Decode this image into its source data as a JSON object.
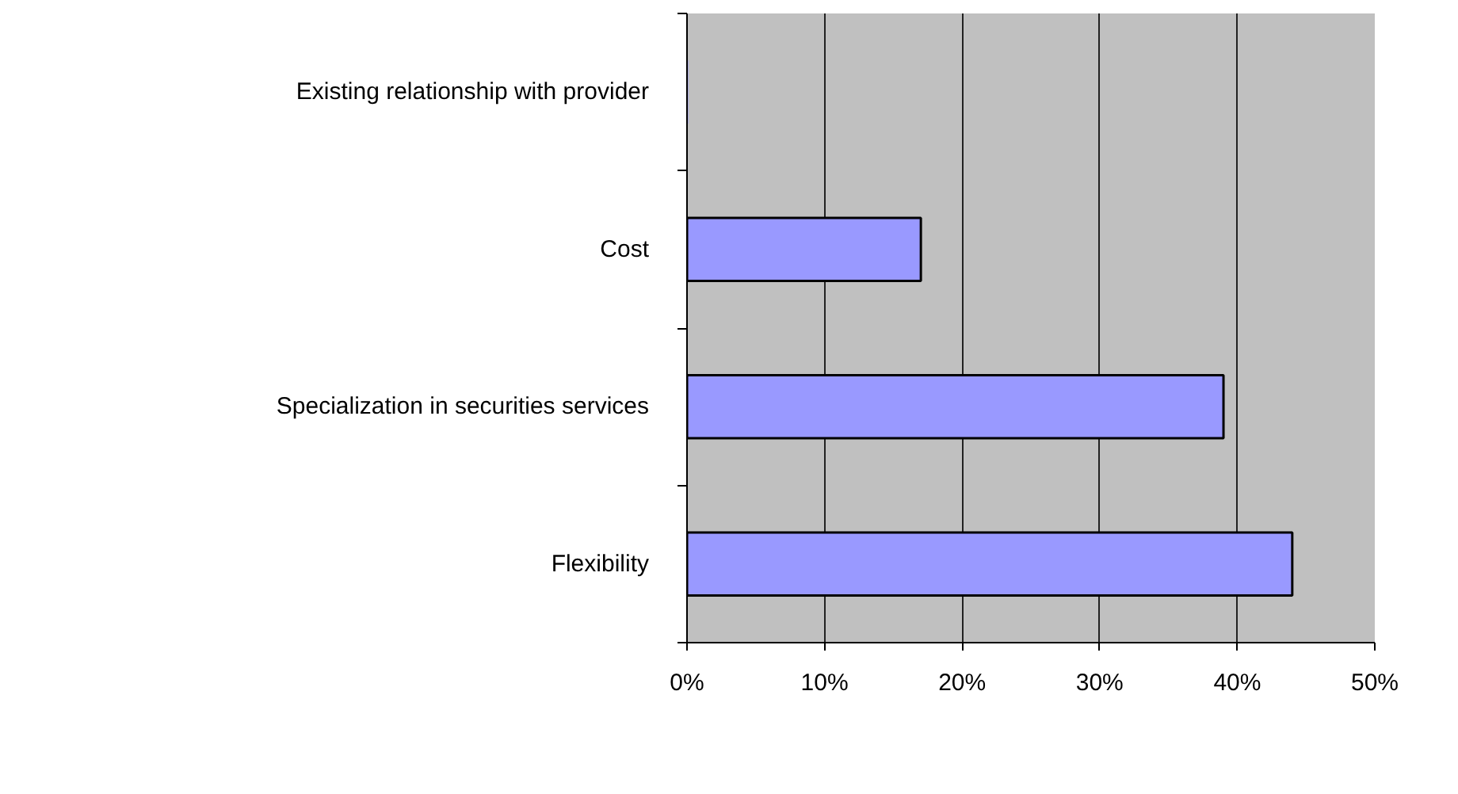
{
  "chart_data": {
    "type": "bar",
    "orientation": "horizontal",
    "categories": [
      "Existing relationship with provider",
      "Cost",
      "Specialization in securities services",
      "Flexibility"
    ],
    "values": [
      0,
      17,
      39,
      44
    ],
    "color": "#9999ff",
    "xlim": [
      0,
      50
    ],
    "xticks": [
      {
        "value": 0,
        "label": "0%"
      },
      {
        "value": 10,
        "label": "10%"
      },
      {
        "value": 20,
        "label": "20%"
      },
      {
        "value": 30,
        "label": "30%"
      },
      {
        "value": 40,
        "label": "40%"
      },
      {
        "value": 50,
        "label": "50%"
      }
    ],
    "grid": "x"
  }
}
